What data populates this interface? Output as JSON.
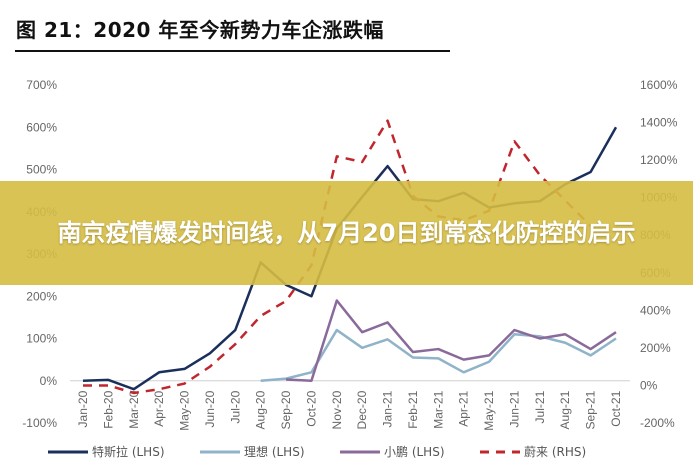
{
  "figure_title": "图 21：2020 年至今新势力车企涨跌幅",
  "banner": {
    "text": "南京疫情爆发时间线，从7月20日到常态化防控的启示"
  },
  "chart_data": {
    "type": "line",
    "title": "图 21：2020 年至今新势力车企涨跌幅",
    "categories": [
      "Jan-20",
      "Feb-20",
      "Mar-20",
      "Apr-20",
      "May-20",
      "Jun-20",
      "Jul-20",
      "Aug-20",
      "Sep-20",
      "Oct-20",
      "Nov-20",
      "Dec-20",
      "Jan-21",
      "Feb-21",
      "Mar-21",
      "Apr-21",
      "May-21",
      "Jun-21",
      "Jul-21",
      "Aug-21",
      "Sep-21",
      "Oct-21"
    ],
    "y_left": {
      "ylim": [
        -100,
        700
      ],
      "ticks": [
        "-100%",
        "0%",
        "100%",
        "200%",
        "300%",
        "400%",
        "500%",
        "600%",
        "700%"
      ]
    },
    "y_right": {
      "ylim": [
        -200,
        1600
      ],
      "ticks": [
        "-200%",
        "0%",
        "200%",
        "400%",
        "600%",
        "800%",
        "1000%",
        "1200%",
        "1400%",
        "1600%"
      ]
    },
    "grid": false,
    "legend_position": "bottom",
    "series": [
      {
        "name": "特斯拉 (LHS)",
        "axis": "left",
        "color": "#1b2f5c",
        "dash": false,
        "values": [
          0,
          2,
          -20,
          20,
          28,
          65,
          120,
          280,
          227,
          200,
          360,
          435,
          508,
          430,
          425,
          445,
          410,
          420,
          425,
          465,
          494,
          600
        ]
      },
      {
        "name": "理想 (LHS)",
        "axis": "left",
        "color": "#8fb3c8",
        "dash": false,
        "values": [
          null,
          null,
          null,
          null,
          null,
          null,
          null,
          0,
          5,
          20,
          120,
          78,
          98,
          55,
          53,
          20,
          45,
          110,
          105,
          90,
          60,
          100
        ]
      },
      {
        "name": "小鹏 (LHS)",
        "axis": "left",
        "color": "#8a6a9a",
        "dash": false,
        "values": [
          null,
          null,
          null,
          null,
          null,
          null,
          null,
          null,
          3,
          0,
          190,
          115,
          138,
          68,
          75,
          50,
          60,
          120,
          100,
          110,
          75,
          115
        ]
      },
      {
        "name": "蔚来 (RHS)",
        "axis": "right",
        "color": "#c0262d",
        "dash": true,
        "values": [
          0,
          0,
          -40,
          -20,
          10,
          100,
          220,
          370,
          450,
          640,
          1220,
          1190,
          1410,
          1010,
          900,
          880,
          930,
          1300,
          1120,
          985,
          850,
          null
        ]
      }
    ]
  }
}
